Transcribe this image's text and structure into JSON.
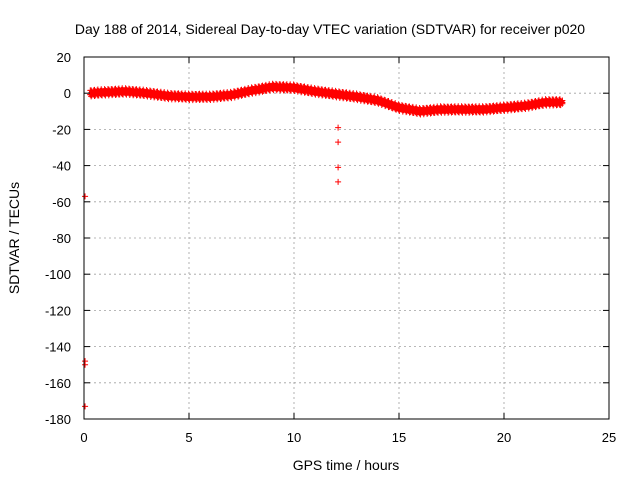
{
  "chart_data": {
    "type": "scatter",
    "title": "Day 188 of 2014, Sidereal Day-to-day VTEC variation (SDTVAR) for receiver p020",
    "xlabel": "GPS time / hours",
    "ylabel": "SDTVAR / TECUs",
    "xlim": [
      0,
      25
    ],
    "ylim": [
      -180,
      20
    ],
    "xticks": [
      0,
      5,
      10,
      15,
      20,
      25
    ],
    "yticks": [
      -180,
      -160,
      -140,
      -120,
      -100,
      -80,
      -60,
      -40,
      -20,
      0,
      20
    ],
    "grid": true,
    "marker": "+",
    "color": "#ff0000",
    "series": [
      {
        "name": "p020",
        "trend": {
          "x": [
            0.3,
            1,
            2,
            3,
            4,
            5,
            6,
            7,
            8,
            9,
            10,
            11,
            12,
            13,
            14,
            15,
            16,
            17,
            18,
            19,
            20,
            21,
            22,
            22.8
          ],
          "y": [
            0,
            0.5,
            1,
            0,
            -1.5,
            -2,
            -2,
            -1,
            1.5,
            3.5,
            3,
            1,
            -0.5,
            -2,
            -4,
            -8,
            -10,
            -9,
            -9,
            -9,
            -8,
            -7,
            -5,
            -5
          ]
        },
        "outliers": [
          {
            "x": 12.1,
            "y": -19
          },
          {
            "x": 12.1,
            "y": -27
          },
          {
            "x": 12.1,
            "y": -41
          },
          {
            "x": 12.1,
            "y": -49
          },
          {
            "x": 0.05,
            "y": -57
          },
          {
            "x": 0.05,
            "y": -148
          },
          {
            "x": 0.05,
            "y": -150
          },
          {
            "x": 0.05,
            "y": -173
          }
        ]
      }
    ]
  }
}
